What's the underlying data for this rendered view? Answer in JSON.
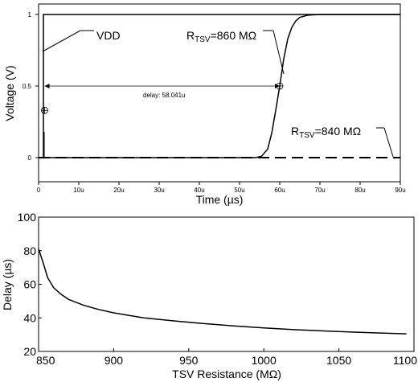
{
  "chart_data": [
    {
      "type": "line",
      "xlabel": "Time (µs)",
      "ylabel": "Voltage (V)",
      "xlim": [
        0,
        90
      ],
      "ylim": [
        0,
        1
      ],
      "x_ticks": [
        "0",
        "10u",
        "20u",
        "30u",
        "40u",
        "50u",
        "60u",
        "70u",
        "80u",
        "90u"
      ],
      "y_ticks": [
        "0",
        "0.5",
        "1"
      ],
      "annotations": {
        "vdd": "VDD",
        "delay": "delay: 58.041u",
        "r860_prefix": "R",
        "r860_sub": "TSV",
        "r860_value": "=860 MΩ",
        "r840_prefix": "R",
        "r840_sub": "TSV",
        "r840_value": "=840 MΩ"
      },
      "series": [
        {
          "name": "RTSV=860 MΩ",
          "style": "solid",
          "x": [
            0,
            54,
            55.5,
            57,
            58,
            59,
            60,
            61,
            62,
            63,
            64,
            65,
            67,
            70,
            90
          ],
          "y": [
            0,
            0,
            0.01,
            0.06,
            0.17,
            0.33,
            0.5,
            0.69,
            0.83,
            0.91,
            0.955,
            0.98,
            0.995,
            1,
            1
          ]
        },
        {
          "name": "RTSV=840 MΩ",
          "style": "dashed",
          "x": [
            0,
            90
          ],
          "y": [
            0,
            0
          ]
        },
        {
          "name": "VDD",
          "style": "solid",
          "x": [
            1.2,
            1.2,
            90
          ],
          "y": [
            0,
            1,
            1
          ]
        }
      ],
      "markers": [
        {
          "x": 1.5,
          "y": 0.33
        },
        {
          "x": 60,
          "y": 0.5
        }
      ],
      "spike": {
        "x": 1.3,
        "y": 0.18
      },
      "delay_span": {
        "from": 1.5,
        "to": 60,
        "y": 0.5
      }
    },
    {
      "type": "line",
      "xlabel": "TSV Resistance (MΩ)",
      "ylabel": "Delay (µs)",
      "xlim": [
        850,
        1100
      ],
      "ylim": [
        20,
        100
      ],
      "x_ticks": [
        "850",
        "900",
        "950",
        "1000",
        "1050",
        "1100"
      ],
      "y_ticks": [
        "20",
        "40",
        "60",
        "80",
        "100"
      ],
      "series": [
        {
          "name": "Delay",
          "x": [
            850,
            853,
            856,
            860,
            865,
            870,
            880,
            890,
            900,
            920,
            940,
            960,
            980,
            1000,
            1020,
            1040,
            1060,
            1080,
            1095
          ],
          "y": [
            81,
            73,
            64,
            58,
            54,
            51,
            47.5,
            45,
            43,
            40,
            38.2,
            36.6,
            35.2,
            34,
            33,
            32.2,
            31.5,
            30.9,
            30.5
          ]
        }
      ]
    }
  ]
}
